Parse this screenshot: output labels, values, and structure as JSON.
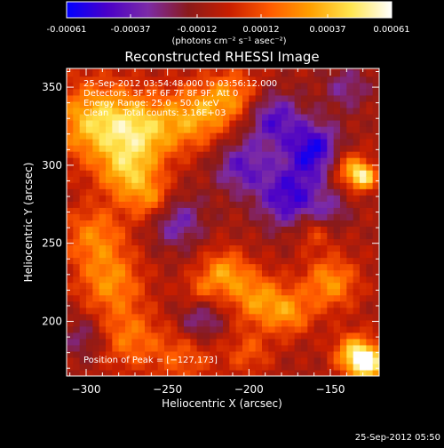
{
  "colorbar": {
    "tick_labels": [
      "-0.00061",
      "-0.00037",
      "-0.00012",
      "0.00012",
      "0.00037",
      "0.00061"
    ],
    "tick_values": [
      -0.00061,
      -0.00037,
      -0.00012,
      0.00012,
      0.00037,
      0.00061
    ],
    "range": [
      -0.00061,
      0.00061
    ],
    "units_label": "(photons cm⁻² s⁻¹ asec⁻²)",
    "colors": [
      "#0000ff",
      "#4a00c8",
      "#7c2ba6",
      "#8a1a1a",
      "#c81e00",
      "#ff5a00",
      "#ffa000",
      "#ffe650",
      "#ffffff"
    ]
  },
  "chart_data": {
    "type": "heatmap",
    "title": "Reconstructed RHESSI Image",
    "xlabel": "Heliocentric X (arcsec)",
    "ylabel": "Heliocentric Y (arcsec)",
    "xlim": [
      -312,
      -120
    ],
    "ylim": [
      165,
      362
    ],
    "xticks": [
      -300,
      -250,
      -200,
      -150
    ],
    "yticks": [
      200,
      250,
      300,
      350
    ],
    "xtick_labels": [
      "−300",
      "−250",
      "−200",
      "−150"
    ],
    "ytick_labels": [
      "200",
      "250",
      "300",
      "350"
    ],
    "info_lines": [
      "25-Sep-2012 03:54:48.000 to 03:56:12.000",
      "Detectors: 3F 5F 6F 7F 8F 9F, Att 0",
      "Energy Range: 25.0 - 50.0 keV",
      "Clean     Total counts: 3.16E+03"
    ],
    "peak_label": "Position of Peak = [−127,173]",
    "peak": [
      -127,
      173
    ],
    "blobs": [
      {
        "x": -127,
        "y": 173,
        "v": 0.00061,
        "s": 7
      },
      {
        "x": -135,
        "y": 180,
        "v": 0.00045,
        "s": 9
      },
      {
        "x": -130,
        "y": 293,
        "v": 0.00055,
        "s": 6
      },
      {
        "x": -140,
        "y": 300,
        "v": 0.0003,
        "s": 8
      },
      {
        "x": -295,
        "y": 328,
        "v": 0.00045,
        "s": 18
      },
      {
        "x": -265,
        "y": 322,
        "v": 0.00042,
        "s": 16
      },
      {
        "x": -232,
        "y": 332,
        "v": 0.00035,
        "s": 14
      },
      {
        "x": -210,
        "y": 345,
        "v": 0.0003,
        "s": 12
      },
      {
        "x": -275,
        "y": 295,
        "v": 0.00035,
        "s": 12
      },
      {
        "x": -260,
        "y": 278,
        "v": 0.0003,
        "s": 10
      },
      {
        "x": -295,
        "y": 255,
        "v": 0.0003,
        "s": 14
      },
      {
        "x": -285,
        "y": 225,
        "v": 0.00032,
        "s": 14
      },
      {
        "x": -275,
        "y": 190,
        "v": 0.00028,
        "s": 14
      },
      {
        "x": -240,
        "y": 178,
        "v": 0.00022,
        "s": 14
      },
      {
        "x": -215,
        "y": 232,
        "v": 0.00035,
        "s": 10
      },
      {
        "x": -195,
        "y": 215,
        "v": 0.00035,
        "s": 12
      },
      {
        "x": -175,
        "y": 205,
        "v": 0.0003,
        "s": 10
      },
      {
        "x": -150,
        "y": 225,
        "v": 0.00035,
        "s": 12
      },
      {
        "x": -160,
        "y": 258,
        "v": 0.0002,
        "s": 8
      },
      {
        "x": -200,
        "y": 180,
        "v": 0.0002,
        "s": 10
      },
      {
        "x": -230,
        "y": 220,
        "v": 0.00018,
        "s": 8
      },
      {
        "x": -185,
        "y": 330,
        "v": -0.00035,
        "s": 12
      },
      {
        "x": -160,
        "y": 310,
        "v": -0.00045,
        "s": 12
      },
      {
        "x": -175,
        "y": 280,
        "v": -0.0004,
        "s": 14
      },
      {
        "x": -205,
        "y": 300,
        "v": -0.0003,
        "s": 12
      },
      {
        "x": -245,
        "y": 265,
        "v": -0.00028,
        "s": 12
      },
      {
        "x": -230,
        "y": 200,
        "v": -0.00025,
        "s": 10
      },
      {
        "x": -300,
        "y": 190,
        "v": -0.0002,
        "s": 10
      },
      {
        "x": -140,
        "y": 350,
        "v": -0.0002,
        "s": 10
      },
      {
        "x": -150,
        "y": 270,
        "v": -0.00018,
        "s": 8
      }
    ]
  },
  "footer": {
    "timestamp": "25-Sep-2012 05:50"
  }
}
